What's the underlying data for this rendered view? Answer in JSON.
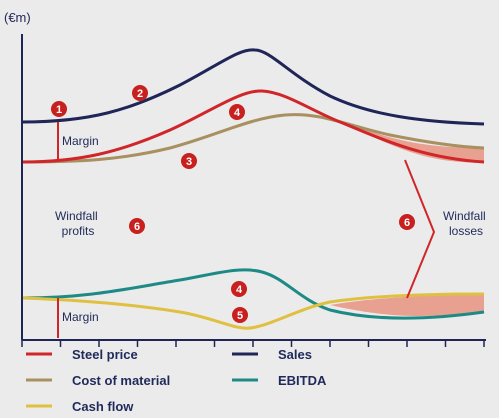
{
  "diagram": {
    "unit_label": "(€m)",
    "colors": {
      "sales": "#1f2657",
      "steel": "#d0262a",
      "material": "#a89060",
      "ebitda": "#1d8a86",
      "cashflow": "#e0c040",
      "fill": "#e8a090",
      "axis": "#1f2657",
      "marker": "#c8201e",
      "label": "#1f2a5a",
      "background": "#ebebeb"
    },
    "labels": {
      "margin_top": "Margin",
      "margin_bottom": "Margin",
      "windfall_profits": "Windfall\nprofits",
      "windfall_losses": "Windfall\nlosses"
    },
    "markers": [
      "1",
      "2",
      "3",
      "4",
      "4",
      "5",
      "6",
      "6"
    ],
    "legend": [
      {
        "series": "steel",
        "label": "Steel price"
      },
      {
        "series": "sales",
        "label": "Sales"
      },
      {
        "series": "material",
        "label": "Cost of material"
      },
      {
        "series": "ebitda",
        "label": "EBITDA"
      },
      {
        "series": "cashflow",
        "label": "Cash flow"
      }
    ]
  }
}
